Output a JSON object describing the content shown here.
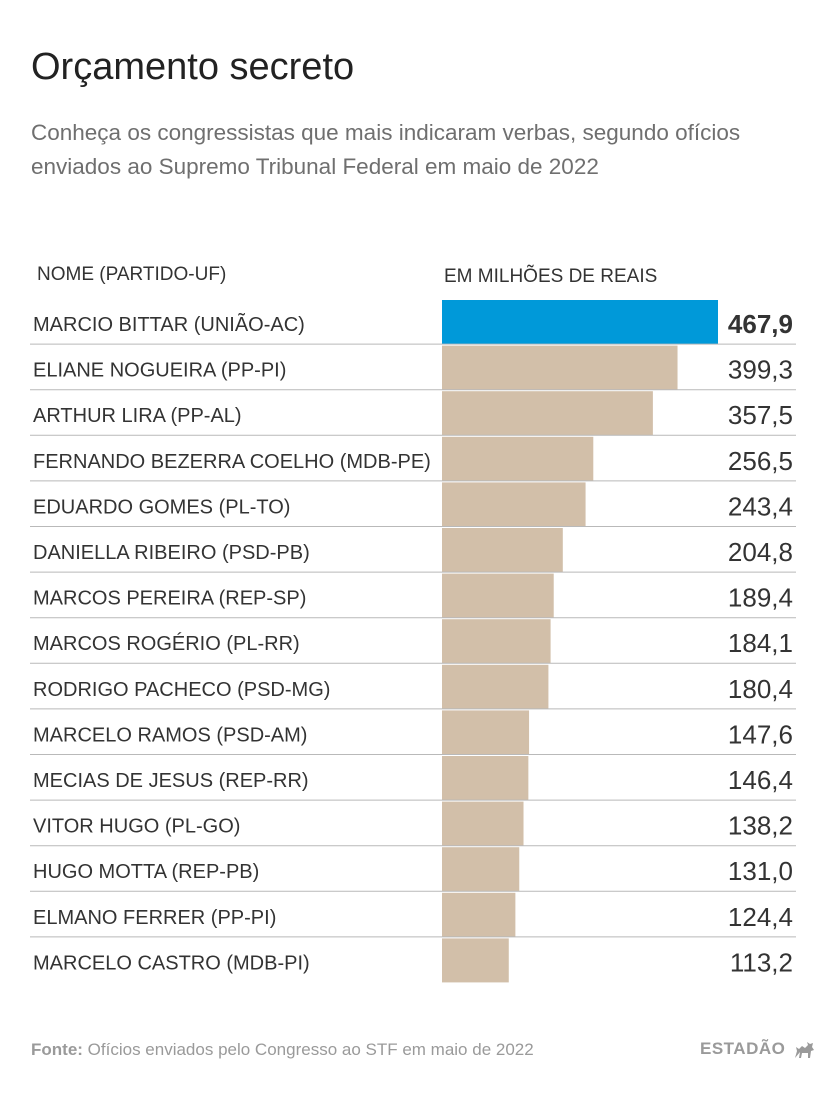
{
  "title": "Orçamento secreto",
  "subtitle": "Conheça os congressistas que mais indicaram verbas, segundo ofícios enviados ao Supremo Tribunal Federal em maio de 2022",
  "header": {
    "name_col": "NOME (PARTIDO-UF)",
    "value_col": "EM MILHÕES DE REAIS"
  },
  "colors": {
    "highlight": "#0099d9",
    "bar": "#d2bfa9",
    "divider": "#b9b9b9"
  },
  "chart_data": {
    "type": "bar",
    "orientation": "horizontal",
    "title": "Orçamento secreto",
    "xlabel": "EM MILHÕES DE REAIS",
    "ylabel": "NOME (PARTIDO-UF)",
    "xlim": [
      0,
      467.9
    ],
    "grid": false,
    "legend": "none",
    "categories": [
      "MARCIO BITTAR (UNIÃO-AC)",
      "ELIANE NOGUEIRA (PP-PI)",
      "ARTHUR LIRA (PP-AL)",
      "FERNANDO BEZERRA COELHO (MDB-PE)",
      "EDUARDO GOMES (PL-TO)",
      "DANIELLA RIBEIRO (PSD-PB)",
      "MARCOS PEREIRA (REP-SP)",
      "MARCOS ROGÉRIO (PL-RR)",
      "RODRIGO PACHECO (PSD-MG)",
      "MARCELO RAMOS (PSD-AM)",
      "MECIAS DE JESUS (REP-RR)",
      "VITOR HUGO (PL-GO)",
      "HUGO MOTTA (REP-PB)",
      "ELMANO FERRER (PP-PI)",
      "MARCELO CASTRO (MDB-PI)"
    ],
    "values": [
      467.9,
      399.3,
      357.5,
      256.5,
      243.4,
      204.8,
      189.4,
      184.1,
      180.4,
      147.6,
      146.4,
      138.2,
      131.0,
      124.4,
      113.2
    ],
    "value_labels": [
      "467,9",
      "399,3",
      "357,5",
      "256,5",
      "243,4",
      "204,8",
      "189,4",
      "184,1",
      "180,4",
      "147,6",
      "146,4",
      "138,2",
      "131,0",
      "124,4",
      "113,2"
    ],
    "highlight_index": 0
  },
  "footer": {
    "source_label": "Fonte:",
    "source_text": "Ofícios enviados pelo Congresso ao STF em maio de 2022",
    "brand": "ESTADÃO"
  }
}
